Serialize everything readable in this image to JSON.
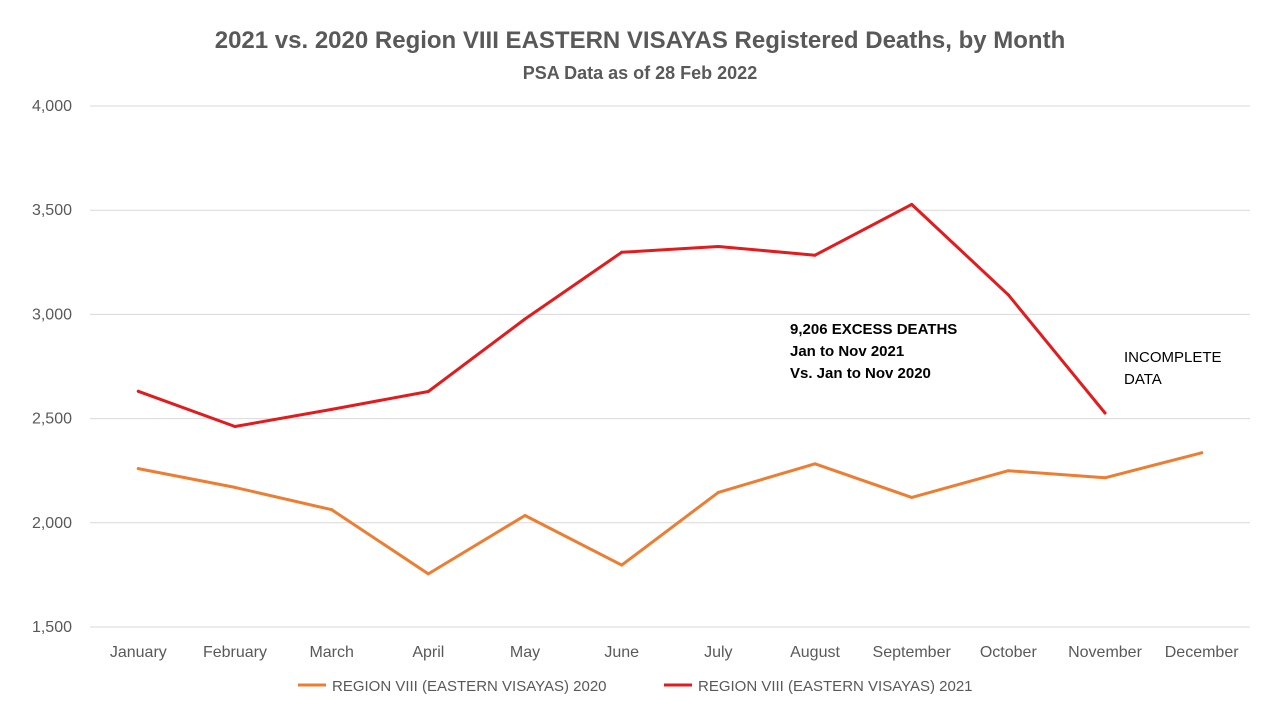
{
  "chart_data": {
    "type": "line",
    "title": "2021 vs. 2020 Region VIII EASTERN VISAYAS Registered Deaths, by Month",
    "subtitle": "PSA Data as of 28 Feb 2022",
    "categories": [
      "January",
      "February",
      "March",
      "April",
      "May",
      "June",
      "July",
      "August",
      "September",
      "October",
      "November",
      "December"
    ],
    "ylim": [
      1500,
      4000
    ],
    "yticks": [
      1500,
      2000,
      2500,
      3000,
      3500,
      4000
    ],
    "ytick_labels": [
      "1,500",
      "2,000",
      "2,500",
      "3,000",
      "3,500",
      "4,000"
    ],
    "grid": true,
    "legend_position": "bottom",
    "series": [
      {
        "name": "REGION VIII (EASTERN VISAYAS) 2020",
        "color": "#ED7D31",
        "values": [
          2260,
          2170,
          2063,
          1755,
          2035,
          1797,
          2146,
          2283,
          2122,
          2250,
          2216,
          2336
        ]
      },
      {
        "name": "REGION VIII (EASTERN VISAYAS) 2021",
        "color": "#E41A1C",
        "values": [
          2631,
          2462,
          2544,
          2630,
          2978,
          3298,
          3326,
          3284,
          3528,
          3094,
          2527,
          null
        ]
      }
    ],
    "annotations": [
      {
        "lines": [
          "9,206 EXCESS DEATHS",
          "Jan to Nov 2021",
          "Vs. Jan to Nov 2020"
        ],
        "bold": true,
        "near": "October"
      },
      {
        "lines": [
          "INCOMPLETE",
          "DATA"
        ],
        "bold": false,
        "near": "November"
      }
    ]
  }
}
